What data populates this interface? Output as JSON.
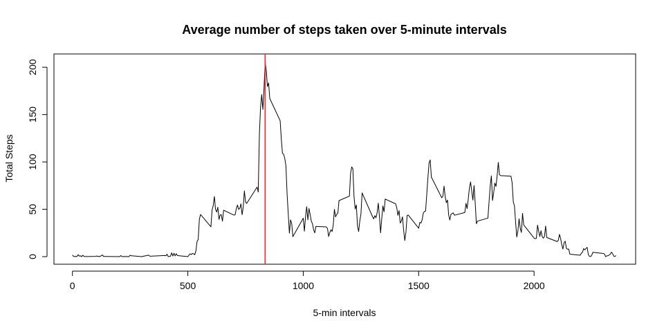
{
  "chart_data": {
    "type": "line",
    "title": "Average number of steps taken over 5-minute intervals",
    "xlabel": "5-min intervals",
    "ylabel": "Total Steps",
    "xlim": [
      -80,
      2440
    ],
    "ylim": [
      -8,
      214
    ],
    "x_ticks": [
      0,
      500,
      1000,
      1500,
      2000
    ],
    "y_ticks": [
      0,
      50,
      100,
      150,
      200
    ],
    "grid": false,
    "legend": "none",
    "colors": {
      "line": "#000000",
      "vline": "#e03a3a",
      "frame": "#000000"
    },
    "vline": {
      "x": 835
    },
    "series": [
      {
        "values": [
          [
            0,
            1.7
          ],
          [
            5,
            0.3
          ],
          [
            10,
            0.1
          ],
          [
            15,
            0.2
          ],
          [
            20,
            0.1
          ],
          [
            25,
            2.1
          ],
          [
            30,
            0.5
          ],
          [
            35,
            0.9
          ],
          [
            40,
            0.0
          ],
          [
            45,
            1.5
          ],
          [
            50,
            0.3
          ],
          [
            55,
            0.1
          ],
          [
            100,
            0.3
          ],
          [
            105,
            0.7
          ],
          [
            110,
            0.2
          ],
          [
            115,
            0.3
          ],
          [
            120,
            0.0
          ],
          [
            125,
            1.1
          ],
          [
            130,
            1.8
          ],
          [
            135,
            0.2
          ],
          [
            140,
            0.2
          ],
          [
            200,
            0.0
          ],
          [
            205,
            0.0
          ],
          [
            210,
            1.1
          ],
          [
            215,
            0.0
          ],
          [
            220,
            0.0
          ],
          [
            225,
            0.1
          ],
          [
            230,
            0.0
          ],
          [
            235,
            0.2
          ],
          [
            240,
            0.0
          ],
          [
            245,
            0.0
          ],
          [
            250,
            1.5
          ],
          [
            255,
            0.9
          ],
          [
            300,
            0.0
          ],
          [
            330,
            1.6
          ],
          [
            335,
            0.6
          ],
          [
            340,
            0.5
          ],
          [
            400,
            1.2
          ],
          [
            405,
            0.9
          ],
          [
            410,
            2.6
          ],
          [
            415,
            0.0
          ],
          [
            420,
            0.3
          ],
          [
            425,
            0.4
          ],
          [
            430,
            4.1
          ],
          [
            435,
            0.7
          ],
          [
            440,
            3.5
          ],
          [
            445,
            0.8
          ],
          [
            450,
            3.1
          ],
          [
            455,
            1.1
          ],
          [
            500,
            0.0
          ],
          [
            505,
            1.6
          ],
          [
            510,
            3.0
          ],
          [
            515,
            2.2
          ],
          [
            520,
            3.3
          ],
          [
            525,
            3.0
          ],
          [
            530,
            2.1
          ],
          [
            535,
            6.1
          ],
          [
            540,
            16.0
          ],
          [
            545,
            18.3
          ],
          [
            550,
            39.5
          ],
          [
            555,
            44.5
          ],
          [
            600,
            31.5
          ],
          [
            605,
            49.3
          ],
          [
            610,
            53.8
          ],
          [
            615,
            63.5
          ],
          [
            620,
            50.0
          ],
          [
            625,
            47.1
          ],
          [
            630,
            52.2
          ],
          [
            635,
            39.3
          ],
          [
            640,
            44.0
          ],
          [
            645,
            44.2
          ],
          [
            650,
            37.4
          ],
          [
            655,
            49.0
          ],
          [
            700,
            43.8
          ],
          [
            705,
            44.4
          ],
          [
            710,
            50.5
          ],
          [
            715,
            54.5
          ],
          [
            720,
            49.9
          ],
          [
            725,
            51.0
          ],
          [
            730,
            55.7
          ],
          [
            735,
            44.3
          ],
          [
            740,
            52.3
          ],
          [
            745,
            69.5
          ],
          [
            750,
            57.8
          ],
          [
            755,
            56.2
          ],
          [
            800,
            73.4
          ],
          [
            805,
            68.2
          ],
          [
            810,
            129.4
          ],
          [
            815,
            157.5
          ],
          [
            820,
            171.2
          ],
          [
            825,
            155.4
          ],
          [
            830,
            177.3
          ],
          [
            835,
            206.2
          ],
          [
            840,
            195.9
          ],
          [
            845,
            179.6
          ],
          [
            850,
            183.4
          ],
          [
            855,
            167.0
          ],
          [
            900,
            143.5
          ],
          [
            905,
            124.0
          ],
          [
            910,
            109.1
          ],
          [
            915,
            108.1
          ],
          [
            920,
            103.7
          ],
          [
            925,
            95.9
          ],
          [
            930,
            66.2
          ],
          [
            935,
            45.2
          ],
          [
            940,
            24.8
          ],
          [
            945,
            38.8
          ],
          [
            950,
            35.0
          ],
          [
            955,
            21.1
          ],
          [
            1000,
            40.6
          ],
          [
            1005,
            26.9
          ],
          [
            1010,
            42.4
          ],
          [
            1015,
            52.7
          ],
          [
            1020,
            38.9
          ],
          [
            1025,
            50.8
          ],
          [
            1030,
            44.3
          ],
          [
            1035,
            37.4
          ],
          [
            1040,
            34.7
          ],
          [
            1045,
            28.3
          ],
          [
            1050,
            25.1
          ],
          [
            1055,
            31.9
          ],
          [
            1100,
            31.4
          ],
          [
            1105,
            29.7
          ],
          [
            1110,
            21.3
          ],
          [
            1115,
            25.5
          ],
          [
            1120,
            28.4
          ],
          [
            1125,
            26.5
          ],
          [
            1130,
            33.4
          ],
          [
            1135,
            50.0
          ],
          [
            1140,
            42.0
          ],
          [
            1145,
            44.6
          ],
          [
            1150,
            46.0
          ],
          [
            1155,
            59.2
          ],
          [
            1200,
            63.9
          ],
          [
            1205,
            87.7
          ],
          [
            1210,
            94.8
          ],
          [
            1215,
            92.8
          ],
          [
            1220,
            63.4
          ],
          [
            1225,
            50.2
          ],
          [
            1230,
            54.5
          ],
          [
            1235,
            32.4
          ],
          [
            1240,
            26.5
          ],
          [
            1245,
            37.7
          ],
          [
            1250,
            45.1
          ],
          [
            1255,
            67.3
          ],
          [
            1300,
            42.3
          ],
          [
            1305,
            39.9
          ],
          [
            1310,
            43.3
          ],
          [
            1315,
            41.0
          ],
          [
            1320,
            46.2
          ],
          [
            1325,
            56.4
          ],
          [
            1330,
            42.8
          ],
          [
            1335,
            25.1
          ],
          [
            1340,
            39.9
          ],
          [
            1345,
            53.5
          ],
          [
            1350,
            47.3
          ],
          [
            1355,
            60.8
          ],
          [
            1400,
            55.8
          ],
          [
            1405,
            51.9
          ],
          [
            1410,
            43.6
          ],
          [
            1415,
            48.7
          ],
          [
            1420,
            35.5
          ],
          [
            1425,
            37.5
          ],
          [
            1430,
            42.0
          ],
          [
            1435,
            27.5
          ],
          [
            1440,
            17.1
          ],
          [
            1445,
            26.1
          ],
          [
            1450,
            43.6
          ],
          [
            1455,
            43.9
          ],
          [
            1500,
            30.0
          ],
          [
            1505,
            36.1
          ],
          [
            1510,
            35.5
          ],
          [
            1515,
            38.8
          ],
          [
            1520,
            45.9
          ],
          [
            1525,
            47.8
          ],
          [
            1530,
            48.1
          ],
          [
            1535,
            65.3
          ],
          [
            1540,
            82.9
          ],
          [
            1545,
            98.7
          ],
          [
            1550,
            102.1
          ],
          [
            1555,
            84.0
          ],
          [
            1600,
            62.1
          ],
          [
            1605,
            64.1
          ],
          [
            1610,
            74.5
          ],
          [
            1615,
            63.2
          ],
          [
            1620,
            56.9
          ],
          [
            1625,
            59.8
          ],
          [
            1630,
            43.9
          ],
          [
            1635,
            38.6
          ],
          [
            1640,
            44.7
          ],
          [
            1645,
            45.5
          ],
          [
            1650,
            46.2
          ],
          [
            1655,
            43.7
          ],
          [
            1700,
            46.6
          ],
          [
            1705,
            56.3
          ],
          [
            1710,
            50.7
          ],
          [
            1715,
            61.2
          ],
          [
            1720,
            72.7
          ],
          [
            1725,
            78.9
          ],
          [
            1730,
            68.9
          ],
          [
            1735,
            59.7
          ],
          [
            1740,
            75.1
          ],
          [
            1745,
            56.5
          ],
          [
            1750,
            34.8
          ],
          [
            1755,
            37.5
          ],
          [
            1800,
            40.7
          ],
          [
            1805,
            58.0
          ],
          [
            1810,
            74.7
          ],
          [
            1815,
            85.3
          ],
          [
            1820,
            59.3
          ],
          [
            1825,
            67.8
          ],
          [
            1830,
            77.7
          ],
          [
            1835,
            74.2
          ],
          [
            1840,
            85.3
          ],
          [
            1845,
            99.5
          ],
          [
            1850,
            86.6
          ],
          [
            1855,
            85.6
          ],
          [
            1900,
            84.9
          ],
          [
            1905,
            77.8
          ],
          [
            1910,
            58.0
          ],
          [
            1915,
            53.4
          ],
          [
            1920,
            36.3
          ],
          [
            1925,
            20.7
          ],
          [
            1930,
            27.4
          ],
          [
            1935,
            40.0
          ],
          [
            1940,
            30.2
          ],
          [
            1945,
            25.5
          ],
          [
            1950,
            45.7
          ],
          [
            1955,
            33.5
          ],
          [
            2000,
            19.6
          ],
          [
            2005,
            19.0
          ],
          [
            2010,
            19.3
          ],
          [
            2015,
            33.3
          ],
          [
            2020,
            26.8
          ],
          [
            2025,
            21.2
          ],
          [
            2030,
            27.3
          ],
          [
            2035,
            21.3
          ],
          [
            2040,
            19.5
          ],
          [
            2045,
            21.3
          ],
          [
            2050,
            32.3
          ],
          [
            2055,
            20.2
          ],
          [
            2100,
            15.9
          ],
          [
            2105,
            17.2
          ],
          [
            2110,
            23.5
          ],
          [
            2115,
            19.2
          ],
          [
            2120,
            12.5
          ],
          [
            2125,
            8.0
          ],
          [
            2130,
            14.7
          ],
          [
            2135,
            16.3
          ],
          [
            2140,
            8.7
          ],
          [
            2145,
            7.8
          ],
          [
            2150,
            8.1
          ],
          [
            2155,
            2.6
          ],
          [
            2200,
            1.5
          ],
          [
            2205,
            3.7
          ],
          [
            2210,
            4.8
          ],
          [
            2215,
            8.5
          ],
          [
            2220,
            7.1
          ],
          [
            2225,
            8.7
          ],
          [
            2230,
            9.8
          ],
          [
            2235,
            2.2
          ],
          [
            2240,
            0.3
          ],
          [
            2245,
            0.1
          ],
          [
            2250,
            1.6
          ],
          [
            2255,
            4.6
          ],
          [
            2300,
            3.3
          ],
          [
            2305,
            2.8
          ],
          [
            2310,
            0.0
          ],
          [
            2315,
            0.8
          ],
          [
            2320,
            1.0
          ],
          [
            2325,
            1.6
          ],
          [
            2330,
            2.6
          ],
          [
            2335,
            4.7
          ],
          [
            2340,
            3.3
          ],
          [
            2345,
            0.6
          ],
          [
            2350,
            0.2
          ],
          [
            2355,
            1.1
          ]
        ]
      }
    ]
  }
}
